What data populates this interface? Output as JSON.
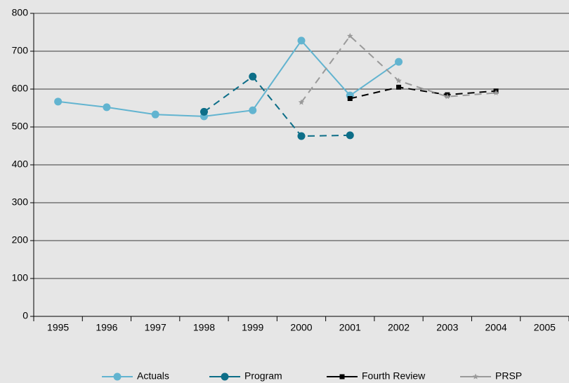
{
  "chart_data": {
    "type": "line",
    "categories": [
      "1995",
      "1996",
      "1997",
      "1998",
      "1999",
      "2000",
      "2001",
      "2002",
      "2003",
      "2004",
      "2005"
    ],
    "series": [
      {
        "name": "Actuals",
        "color": "#62b4d0",
        "dashed": false,
        "marker": "circle",
        "values": [
          567,
          552,
          533,
          528,
          544,
          728,
          583,
          672,
          null,
          null,
          null
        ]
      },
      {
        "name": "Program",
        "color": "#0d6e88",
        "dashed": true,
        "marker": "circle",
        "values": [
          null,
          null,
          null,
          540,
          633,
          476,
          478,
          null,
          null,
          null,
          null
        ]
      },
      {
        "name": "Fourth Review",
        "color": "#000000",
        "dashed": true,
        "marker": "square",
        "values": [
          null,
          null,
          null,
          null,
          null,
          null,
          575,
          605,
          585,
          595,
          null
        ]
      },
      {
        "name": "PRSP",
        "color": "#9a9a9a",
        "dashed": true,
        "marker": "star",
        "values": [
          null,
          null,
          null,
          null,
          null,
          565,
          740,
          622,
          580,
          590,
          null
        ]
      }
    ],
    "ylim": [
      0,
      800
    ],
    "yticks": [
      0,
      100,
      200,
      300,
      400,
      500,
      600,
      700,
      800
    ],
    "grid": true,
    "legend": "bottom"
  }
}
